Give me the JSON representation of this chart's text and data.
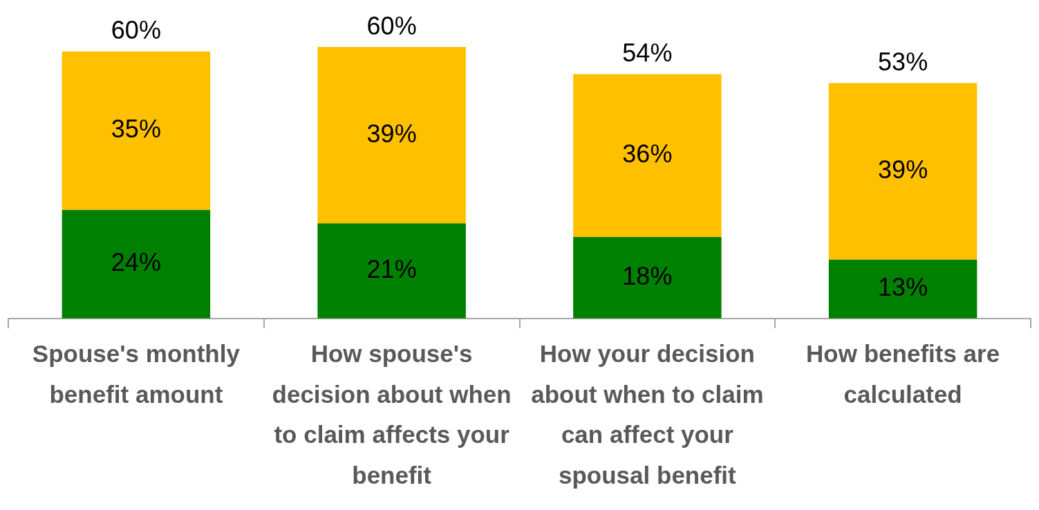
{
  "chart_data": {
    "type": "bar",
    "stacked": true,
    "categories": [
      "Spouse's monthly benefit amount",
      "How spouse's decision about when to claim affects your benefit",
      "How your decision about when to claim can affect your spousal benefit",
      "How benefits are calculated"
    ],
    "series": [
      {
        "color": "#008000",
        "values": [
          24,
          21,
          18,
          13
        ],
        "value_labels": [
          "24%",
          "21%",
          "18%",
          "13%"
        ]
      },
      {
        "color": "#ffc000",
        "values": [
          35,
          39,
          36,
          39
        ],
        "value_labels": [
          "35%",
          "39%",
          "36%",
          "39%"
        ]
      }
    ],
    "totals": [
      "60%",
      "60%",
      "54%",
      "53%"
    ],
    "tick_labels": "x",
    "grid": false,
    "legend": false
  }
}
